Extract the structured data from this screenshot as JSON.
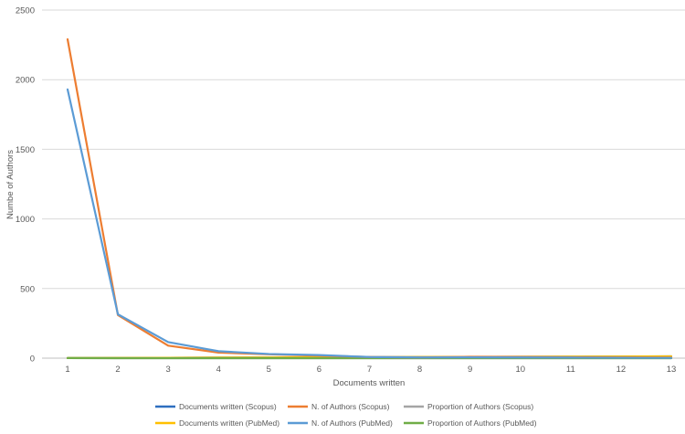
{
  "chart_data": {
    "type": "line",
    "x": [
      1,
      2,
      3,
      4,
      5,
      6,
      7,
      8,
      9,
      10,
      11,
      12,
      13
    ],
    "xlabel": "Documents written",
    "ylabel": "Numbe of Authors",
    "ylim": [
      0,
      2500
    ],
    "yticks": [
      0,
      500,
      1000,
      1500,
      2000,
      2500
    ],
    "grid": "horizontal",
    "legend_position": "bottom",
    "series": [
      {
        "name": "Documents written (Scopus)",
        "color": "#2e6fbf",
        "values": [
          1,
          2,
          3,
          4,
          5,
          6,
          7,
          8,
          9,
          10,
          11,
          12,
          13
        ]
      },
      {
        "name": "N. of Authors (Scopus)",
        "color": "#ed7d31",
        "values": [
          2290,
          310,
          90,
          40,
          28,
          18,
          8,
          5,
          10,
          8,
          6,
          5,
          4
        ]
      },
      {
        "name": "Proportion of Authors (Scopus)",
        "color": "#a5a5a5",
        "values": [
          0.8,
          0.1,
          0.03,
          0.01,
          0.01,
          0.01,
          0,
          0,
          0,
          0,
          0,
          0,
          0
        ]
      },
      {
        "name": "Documents written (PubMed)",
        "color": "#ffc000",
        "values": [
          1,
          2,
          3,
          4,
          5,
          6,
          7,
          8,
          9,
          10,
          11,
          12,
          13
        ]
      },
      {
        "name": "N. of Authors (PubMed)",
        "color": "#5b9bd5",
        "values": [
          1930,
          315,
          115,
          50,
          30,
          22,
          8,
          5,
          6,
          5,
          4,
          3,
          2
        ]
      },
      {
        "name": "Proportion of Authors (PubMed)",
        "color": "#70ad47",
        "values": [
          0.77,
          0.12,
          0.04,
          0.02,
          0.01,
          0.01,
          0,
          0,
          0,
          0,
          0,
          0,
          0
        ]
      }
    ]
  }
}
